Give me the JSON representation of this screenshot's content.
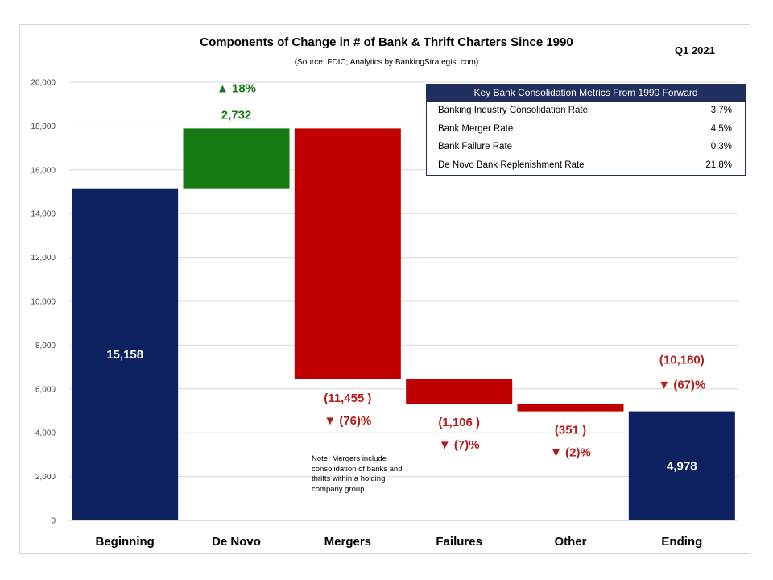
{
  "title": "Components of Change in # of Bank & Thrift Charters Since 1990",
  "source": "(Source: FDIC; Analytics by BankingStrategist.com)",
  "period": "Q1 2021",
  "colors": {
    "base": "#0d2060",
    "increase": "#147a14",
    "decrease": "#c00000",
    "increase_text": "#1a7a1a",
    "decrease_text": "#b01c1c"
  },
  "metrics_table": {
    "header": "Key Bank Consolidation Metrics From 1990 Forward",
    "rows": [
      {
        "label": "Banking Industry Consolidation Rate",
        "value": "3.7%"
      },
      {
        "label": "Bank Merger Rate",
        "value": "4.5%"
      },
      {
        "label": "Bank Failure Rate",
        "value": "0.3%"
      },
      {
        "label": "De Novo Bank Replenishment Rate",
        "value": "21.8%"
      }
    ]
  },
  "note": "Note: Mergers include consolidation of banks and thrifts within a holding company group.",
  "chart_data": {
    "type": "bar",
    "subtype": "waterfall",
    "categories": [
      "Beginning",
      "De Novo",
      "Mergers",
      "Failures",
      "Other",
      "Ending"
    ],
    "bars": [
      {
        "kind": "base",
        "start": 0,
        "end": 15158,
        "label": "15,158",
        "pct": ""
      },
      {
        "kind": "increase",
        "start": 15158,
        "end": 17890,
        "label": "2,732",
        "pct": "▲ 18%"
      },
      {
        "kind": "decrease",
        "start": 17890,
        "end": 6435,
        "label": "(11,455 )",
        "pct": "▼ (76)%"
      },
      {
        "kind": "decrease",
        "start": 6435,
        "end": 5329,
        "label": "(1,106 )",
        "pct": "▼ (7)%"
      },
      {
        "kind": "decrease",
        "start": 5329,
        "end": 4978,
        "label": "(351 )",
        "pct": "▼ (2)%"
      },
      {
        "kind": "base",
        "start": 0,
        "end": 4978,
        "label": "4,978",
        "pct": ""
      }
    ],
    "ending_change": {
      "label": "(10,180)",
      "pct": "▼ (67)%"
    },
    "ylim": [
      0,
      20000
    ],
    "yticks": [
      0,
      2000,
      4000,
      6000,
      8000,
      10000,
      12000,
      14000,
      16000,
      18000,
      20000
    ],
    "ytick_labels": [
      "0",
      "2,000",
      "4,000",
      "6,000",
      "8,000",
      "10,000",
      "12,000",
      "14,000",
      "16,000",
      "18,000",
      "20,000"
    ],
    "grid": true,
    "xlabel": "",
    "ylabel": ""
  }
}
